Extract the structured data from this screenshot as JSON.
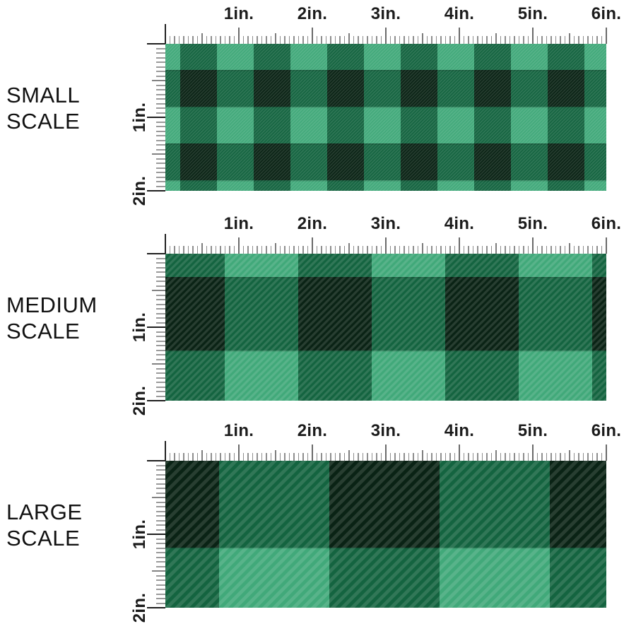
{
  "page": {
    "background": "#ffffff",
    "description_title": "Fabric pattern scale comparison"
  },
  "sections": [
    {
      "id": "small",
      "title_lines": [
        "SMALL",
        "SCALE"
      ],
      "check_size_inches": 0.5
    },
    {
      "id": "medium",
      "title_lines": [
        "MEDIUM",
        "SCALE"
      ],
      "check_size_inches": 1
    },
    {
      "id": "large",
      "title_lines": [
        "LARGE",
        "SCALE"
      ],
      "check_size_inches": 1.5
    }
  ],
  "ruler": {
    "top_labels": [
      "1in.",
      "2in.",
      "3in.",
      "4in.",
      "5in.",
      "6in."
    ],
    "side_labels": [
      "1in.",
      "2in."
    ],
    "unit": "in.",
    "minor_ticks_per_inch": 16
  },
  "pattern": {
    "type": "buffalo-plaid-check",
    "texture": "diagonal-twill-stripes",
    "colors": {
      "light_green": "#41A97A",
      "medium_green": "#146440",
      "dark_green": "#0A2315",
      "seam_shadow": "rgba(0,0,0,0.18)"
    },
    "stripe_color": "#ffffff",
    "stripe_opacity": 0.12,
    "swatch_width_inches": 6,
    "swatch_height_inches": 2
  }
}
